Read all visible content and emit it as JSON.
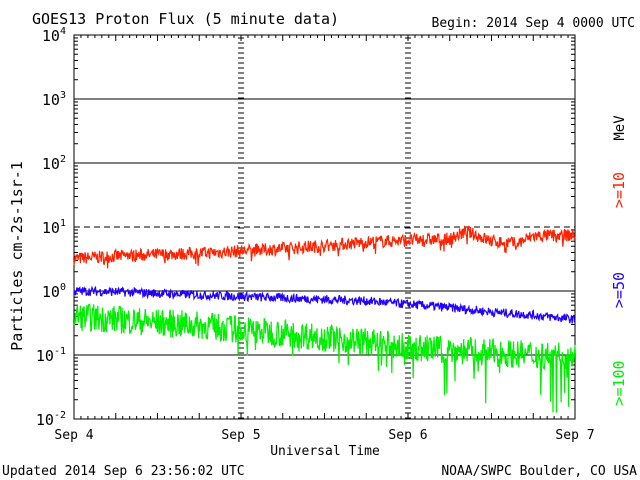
{
  "chart_data": {
    "type": "line",
    "title": "GOES13 Proton Flux (5 minute data)",
    "begin_label": "Begin: 2014 Sep 4 0000 UTC",
    "ylabel": "Particles cm-2s-1sr-1",
    "xlabel": "Universal Time",
    "unit": "MeV",
    "updated": "Updated 2014 Sep  6 23:56:02 UTC",
    "source": "NOAA/SWPC Boulder, CO USA",
    "y_scale": "log",
    "ylim": [
      0.01,
      10000
    ],
    "y_ticks": [
      {
        "value": 10000,
        "base": "10",
        "exp": "4"
      },
      {
        "value": 1000,
        "base": "10",
        "exp": "3"
      },
      {
        "value": 100,
        "base": "10",
        "exp": "2"
      },
      {
        "value": 10,
        "base": "10",
        "exp": "1"
      },
      {
        "value": 1,
        "base": "10",
        "exp": "0"
      },
      {
        "value": 0.1,
        "base": "10",
        "exp": "-1"
      },
      {
        "value": 0.01,
        "base": "10",
        "exp": "-2"
      }
    ],
    "x_ticks": [
      "Sep 4",
      "Sep 5",
      "Sep 6",
      "Sep 7"
    ],
    "xlim_days": [
      0,
      3
    ],
    "series": [
      {
        "name": ">=10",
        "color": "#ff2200",
        "x": [
          0,
          0.25,
          0.5,
          0.75,
          1.0,
          1.25,
          1.5,
          1.75,
          2.0,
          2.25,
          2.35,
          2.5,
          2.65,
          2.75,
          3.0
        ],
        "y": [
          3.2,
          3.5,
          3.7,
          3.9,
          4.2,
          4.6,
          5.1,
          5.8,
          6.2,
          6.5,
          8.5,
          6.0,
          5.5,
          7.2,
          7.5
        ]
      },
      {
        "name": ">=50",
        "color": "#2200ff",
        "x": [
          0,
          0.25,
          0.5,
          0.75,
          1.0,
          1.25,
          1.5,
          1.75,
          2.0,
          2.25,
          2.5,
          2.75,
          3.0
        ],
        "y": [
          1.0,
          0.97,
          0.92,
          0.87,
          0.82,
          0.78,
          0.74,
          0.7,
          0.62,
          0.55,
          0.47,
          0.42,
          0.36
        ]
      },
      {
        "name": ">=100",
        "color": "#00ee00",
        "x": [
          0,
          0.25,
          0.5,
          0.75,
          1.0,
          1.25,
          1.5,
          1.75,
          2.0,
          2.25,
          2.5,
          2.75,
          3.0
        ],
        "y": [
          0.4,
          0.36,
          0.32,
          0.29,
          0.25,
          0.22,
          0.19,
          0.16,
          0.13,
          0.12,
          0.11,
          0.1,
          0.1
        ]
      }
    ],
    "dashed_threshold": 10,
    "grid": true
  }
}
